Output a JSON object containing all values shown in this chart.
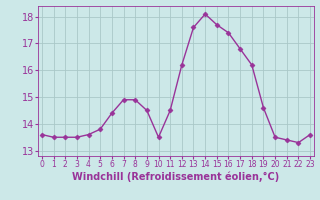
{
  "x": [
    0,
    1,
    2,
    3,
    4,
    5,
    6,
    7,
    8,
    9,
    10,
    11,
    12,
    13,
    14,
    15,
    16,
    17,
    18,
    19,
    20,
    21,
    22,
    23
  ],
  "y": [
    13.6,
    13.5,
    13.5,
    13.5,
    13.6,
    13.8,
    14.4,
    14.9,
    14.9,
    14.5,
    13.5,
    14.5,
    16.2,
    17.6,
    18.1,
    17.7,
    17.4,
    16.8,
    16.2,
    14.6,
    13.5,
    13.4,
    13.3,
    13.6
  ],
  "line_color": "#993399",
  "marker": "D",
  "marker_size": 2.5,
  "background_color": "#cce8e8",
  "grid_color": "#aac8c8",
  "xlabel": "Windchill (Refroidissement éolien,°C)",
  "ylim": [
    12.8,
    18.4
  ],
  "yticks": [
    13,
    14,
    15,
    16,
    17,
    18
  ],
  "font_color": "#993399",
  "xlabel_fontsize": 7,
  "ytick_fontsize": 7,
  "xtick_fontsize": 5.5,
  "linewidth": 1.0
}
